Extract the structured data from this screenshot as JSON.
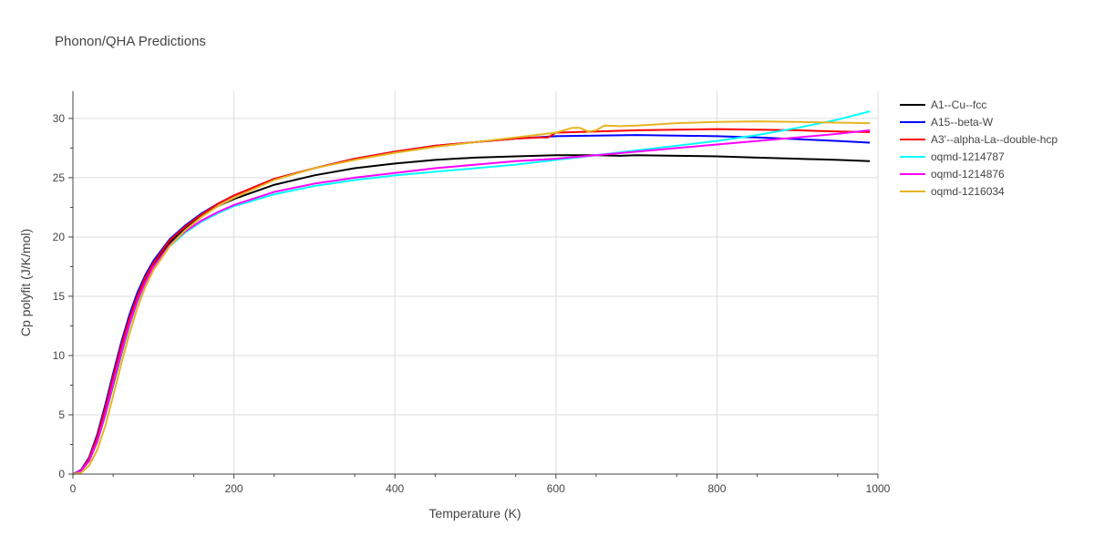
{
  "chart_data": {
    "type": "line",
    "title": "Phonon/QHA Predictions",
    "xlabel": "Temperature (K)",
    "ylabel": "Cp polyfit (J/K/mol)",
    "xlim": [
      0,
      1000
    ],
    "ylim": [
      0,
      32.3
    ],
    "xticks": [
      0,
      200,
      400,
      600,
      800,
      1000
    ],
    "yticks": [
      0,
      5,
      10,
      15,
      20,
      25,
      30
    ],
    "grid": true,
    "legend_position": "right",
    "series": [
      {
        "name": "A1--Cu--fcc",
        "color": "#000000",
        "points": [
          [
            0,
            0
          ],
          [
            10,
            0.3
          ],
          [
            20,
            1.1
          ],
          [
            30,
            2.7
          ],
          [
            40,
            4.9
          ],
          [
            50,
            7.5
          ],
          [
            60,
            10.1
          ],
          [
            70,
            12.5
          ],
          [
            80,
            14.6
          ],
          [
            90,
            16.3
          ],
          [
            100,
            17.6
          ],
          [
            120,
            19.5
          ],
          [
            140,
            20.8
          ],
          [
            160,
            21.8
          ],
          [
            180,
            22.6
          ],
          [
            200,
            23.2
          ],
          [
            250,
            24.4
          ],
          [
            300,
            25.2
          ],
          [
            350,
            25.8
          ],
          [
            400,
            26.2
          ],
          [
            450,
            26.5
          ],
          [
            500,
            26.7
          ],
          [
            550,
            26.8
          ],
          [
            600,
            26.9
          ],
          [
            650,
            26.9
          ],
          [
            680,
            26.85
          ],
          [
            700,
            26.9
          ],
          [
            750,
            26.85
          ],
          [
            800,
            26.8
          ],
          [
            850,
            26.7
          ],
          [
            900,
            26.6
          ],
          [
            950,
            26.5
          ],
          [
            990,
            26.4
          ]
        ]
      },
      {
        "name": "A15--beta-W",
        "color": "#0000ff",
        "points": [
          [
            0,
            0
          ],
          [
            10,
            0.35
          ],
          [
            20,
            1.4
          ],
          [
            30,
            3.3
          ],
          [
            40,
            5.8
          ],
          [
            50,
            8.5
          ],
          [
            60,
            11.1
          ],
          [
            70,
            13.4
          ],
          [
            80,
            15.3
          ],
          [
            90,
            16.8
          ],
          [
            100,
            18.0
          ],
          [
            120,
            19.8
          ],
          [
            140,
            21.0
          ],
          [
            160,
            22.0
          ],
          [
            180,
            22.8
          ],
          [
            200,
            23.5
          ],
          [
            250,
            24.9
          ],
          [
            300,
            25.8
          ],
          [
            350,
            26.6
          ],
          [
            400,
            27.2
          ],
          [
            450,
            27.7
          ],
          [
            500,
            28.0
          ],
          [
            550,
            28.3
          ],
          [
            600,
            28.5
          ],
          [
            650,
            28.55
          ],
          [
            700,
            28.6
          ],
          [
            750,
            28.55
          ],
          [
            800,
            28.5
          ],
          [
            850,
            28.4
          ],
          [
            900,
            28.25
          ],
          [
            950,
            28.1
          ],
          [
            990,
            27.95
          ]
        ]
      },
      {
        "name": "A3'--alpha-La--double-hcp",
        "color": "#ff0000",
        "points": [
          [
            0,
            0
          ],
          [
            10,
            0.3
          ],
          [
            20,
            1.3
          ],
          [
            30,
            3.1
          ],
          [
            40,
            5.5
          ],
          [
            50,
            8.2
          ],
          [
            60,
            10.8
          ],
          [
            70,
            13.1
          ],
          [
            80,
            15.0
          ],
          [
            90,
            16.6
          ],
          [
            100,
            17.8
          ],
          [
            120,
            19.7
          ],
          [
            140,
            20.9
          ],
          [
            160,
            21.9
          ],
          [
            180,
            22.8
          ],
          [
            200,
            23.5
          ],
          [
            250,
            24.9
          ],
          [
            300,
            25.8
          ],
          [
            350,
            26.6
          ],
          [
            400,
            27.2
          ],
          [
            450,
            27.7
          ],
          [
            500,
            28.0
          ],
          [
            550,
            28.3
          ],
          [
            580,
            28.4
          ],
          [
            590,
            28.4
          ],
          [
            600,
            28.8
          ],
          [
            650,
            28.9
          ],
          [
            700,
            29.0
          ],
          [
            750,
            29.05
          ],
          [
            800,
            29.1
          ],
          [
            850,
            29.05
          ],
          [
            900,
            29.0
          ],
          [
            950,
            28.9
          ],
          [
            990,
            28.85
          ]
        ]
      },
      {
        "name": "oqmd-1214787",
        "color": "#00ffff",
        "points": [
          [
            0,
            0
          ],
          [
            10,
            0.25
          ],
          [
            20,
            1.1
          ],
          [
            30,
            2.7
          ],
          [
            40,
            4.9
          ],
          [
            50,
            7.6
          ],
          [
            60,
            10.2
          ],
          [
            70,
            12.5
          ],
          [
            80,
            14.5
          ],
          [
            90,
            16.1
          ],
          [
            100,
            17.4
          ],
          [
            120,
            19.2
          ],
          [
            140,
            20.4
          ],
          [
            160,
            21.3
          ],
          [
            180,
            22.0
          ],
          [
            200,
            22.6
          ],
          [
            250,
            23.6
          ],
          [
            300,
            24.3
          ],
          [
            350,
            24.8
          ],
          [
            400,
            25.2
          ],
          [
            450,
            25.5
          ],
          [
            500,
            25.8
          ],
          [
            550,
            26.1
          ],
          [
            600,
            26.5
          ],
          [
            650,
            26.9
          ],
          [
            700,
            27.3
          ],
          [
            750,
            27.7
          ],
          [
            800,
            28.1
          ],
          [
            850,
            28.6
          ],
          [
            900,
            29.2
          ],
          [
            950,
            29.9
          ],
          [
            990,
            30.6
          ]
        ]
      },
      {
        "name": "oqmd-1214876",
        "color": "#ff00ff",
        "points": [
          [
            0,
            0
          ],
          [
            10,
            0.25
          ],
          [
            20,
            1.1
          ],
          [
            30,
            2.7
          ],
          [
            40,
            5.0
          ],
          [
            50,
            7.7
          ],
          [
            60,
            10.3
          ],
          [
            70,
            12.6
          ],
          [
            80,
            14.6
          ],
          [
            90,
            16.2
          ],
          [
            100,
            17.5
          ],
          [
            120,
            19.3
          ],
          [
            140,
            20.5
          ],
          [
            160,
            21.4
          ],
          [
            180,
            22.1
          ],
          [
            200,
            22.7
          ],
          [
            250,
            23.8
          ],
          [
            300,
            24.5
          ],
          [
            350,
            25.0
          ],
          [
            400,
            25.4
          ],
          [
            450,
            25.8
          ],
          [
            500,
            26.1
          ],
          [
            550,
            26.4
          ],
          [
            600,
            26.6
          ],
          [
            650,
            26.9
          ],
          [
            700,
            27.2
          ],
          [
            750,
            27.5
          ],
          [
            800,
            27.8
          ],
          [
            850,
            28.1
          ],
          [
            900,
            28.4
          ],
          [
            950,
            28.7
          ],
          [
            990,
            29.0
          ]
        ]
      },
      {
        "name": "oqmd-1216034",
        "color": "#e6b422",
        "points": [
          [
            0,
            0
          ],
          [
            10,
            0.1
          ],
          [
            20,
            0.7
          ],
          [
            30,
            2.0
          ],
          [
            40,
            4.0
          ],
          [
            50,
            6.6
          ],
          [
            60,
            9.3
          ],
          [
            70,
            11.8
          ],
          [
            80,
            14.0
          ],
          [
            90,
            15.8
          ],
          [
            100,
            17.2
          ],
          [
            120,
            19.2
          ],
          [
            140,
            20.6
          ],
          [
            160,
            21.7
          ],
          [
            180,
            22.6
          ],
          [
            200,
            23.3
          ],
          [
            250,
            24.8
          ],
          [
            300,
            25.8
          ],
          [
            350,
            26.5
          ],
          [
            400,
            27.1
          ],
          [
            450,
            27.6
          ],
          [
            500,
            28.0
          ],
          [
            550,
            28.4
          ],
          [
            600,
            28.8
          ],
          [
            620,
            29.2
          ],
          [
            630,
            29.2
          ],
          [
            640,
            28.9
          ],
          [
            650,
            29.0
          ],
          [
            660,
            29.4
          ],
          [
            680,
            29.35
          ],
          [
            700,
            29.4
          ],
          [
            750,
            29.6
          ],
          [
            800,
            29.7
          ],
          [
            850,
            29.75
          ],
          [
            900,
            29.7
          ],
          [
            950,
            29.65
          ],
          [
            990,
            29.6
          ]
        ]
      }
    ]
  }
}
